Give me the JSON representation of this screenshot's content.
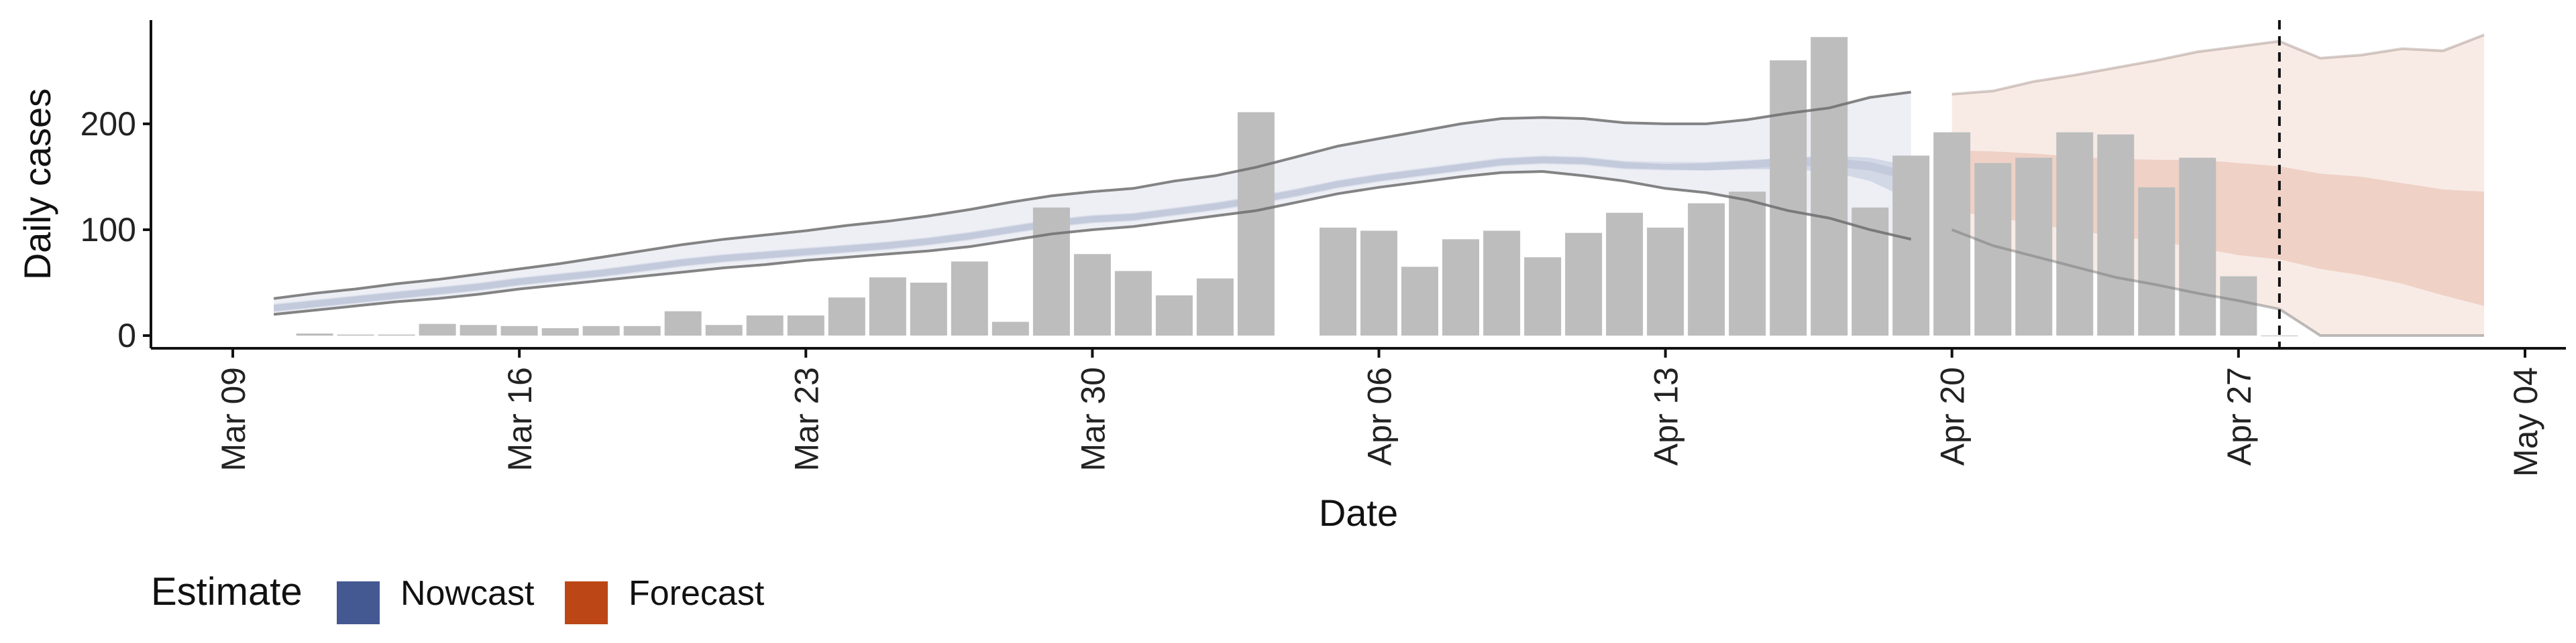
{
  "chart_data": {
    "type": "bar",
    "title": "",
    "xlabel": "Date",
    "ylabel": "Daily cases",
    "x_ticks": [
      "Mar 09",
      "Mar 16",
      "Mar 23",
      "Mar 30",
      "Apr 06",
      "Apr 13",
      "Apr 20",
      "Apr 27",
      "May 04"
    ],
    "y_ticks": [
      "0",
      "100",
      "200"
    ],
    "ylim": [
      -12,
      298
    ],
    "xlim": [
      "2020-03-07",
      "2020-05-05"
    ],
    "grid": false,
    "legend": {
      "title": "Estimate",
      "placement": "bottom-left",
      "entries": [
        {
          "label": "Nowcast",
          "color": "#3A4F8C"
        },
        {
          "label": "Forecast",
          "color": "#B83C0A"
        }
      ]
    },
    "dashed_vline_date": "2020-04-28",
    "reported_cases": {
      "name": "Reported cases",
      "color": "#BDBDBD",
      "dates": [
        "2020-03-11",
        "2020-03-12",
        "2020-03-13",
        "2020-03-14",
        "2020-03-15",
        "2020-03-16",
        "2020-03-17",
        "2020-03-18",
        "2020-03-19",
        "2020-03-20",
        "2020-03-21",
        "2020-03-22",
        "2020-03-23",
        "2020-03-24",
        "2020-03-25",
        "2020-03-26",
        "2020-03-27",
        "2020-03-28",
        "2020-03-29",
        "2020-03-30",
        "2020-03-31",
        "2020-04-01",
        "2020-04-02",
        "2020-04-03",
        "2020-04-05",
        "2020-04-06",
        "2020-04-07",
        "2020-04-08",
        "2020-04-09",
        "2020-04-10",
        "2020-04-11",
        "2020-04-12",
        "2020-04-13",
        "2020-04-14",
        "2020-04-15",
        "2020-04-16",
        "2020-04-17",
        "2020-04-18",
        "2020-04-19",
        "2020-04-20",
        "2020-04-21",
        "2020-04-22",
        "2020-04-23",
        "2020-04-24",
        "2020-04-25",
        "2020-04-26",
        "2020-04-27",
        "2020-04-28"
      ],
      "values": [
        2,
        1,
        1,
        11,
        10,
        9,
        7,
        9,
        9,
        23,
        10,
        19,
        19,
        36,
        55,
        50,
        70,
        13,
        121,
        77,
        61,
        38,
        54,
        211,
        102,
        99,
        65,
        91,
        99,
        74,
        97,
        116,
        102,
        125,
        136,
        260,
        282,
        121,
        170,
        192,
        163,
        168,
        192,
        190,
        140,
        168,
        56,
        0
      ]
    },
    "nowcast": {
      "name": "Nowcast",
      "color": "#3A4F8C",
      "dates": [
        "2020-03-10",
        "2020-03-11",
        "2020-03-12",
        "2020-03-13",
        "2020-03-14",
        "2020-03-15",
        "2020-03-16",
        "2020-03-17",
        "2020-03-18",
        "2020-03-19",
        "2020-03-20",
        "2020-03-21",
        "2020-03-22",
        "2020-03-23",
        "2020-03-24",
        "2020-03-25",
        "2020-03-26",
        "2020-03-27",
        "2020-03-28",
        "2020-03-29",
        "2020-03-30",
        "2020-03-31",
        "2020-04-01",
        "2020-04-02",
        "2020-04-03",
        "2020-04-04",
        "2020-04-05",
        "2020-04-06",
        "2020-04-07",
        "2020-04-08",
        "2020-04-09",
        "2020-04-10",
        "2020-04-11",
        "2020-04-12",
        "2020-04-13",
        "2020-04-14",
        "2020-04-15",
        "2020-04-16",
        "2020-04-17",
        "2020-04-18",
        "2020-04-19"
      ],
      "upper90": [
        35,
        40,
        44,
        49,
        53,
        58,
        63,
        68,
        74,
        80,
        86,
        91,
        95,
        99,
        104,
        108,
        113,
        119,
        126,
        132,
        136,
        139,
        146,
        151,
        159,
        169,
        179,
        186,
        193,
        200,
        205,
        206,
        205,
        201,
        200,
        200,
        204,
        210,
        215,
        225,
        230
      ],
      "upper50": [
        29,
        33,
        37,
        41,
        45,
        49,
        54,
        58,
        62,
        67,
        72,
        76,
        79,
        82,
        85,
        88,
        92,
        97,
        103,
        109,
        113,
        115,
        120,
        125,
        131,
        138,
        146,
        152,
        157,
        162,
        167,
        169,
        168,
        164,
        162,
        163,
        165,
        168,
        170,
        168,
        160
      ],
      "median": [
        26,
        30,
        34,
        38,
        42,
        46,
        51,
        55,
        59,
        64,
        69,
        73,
        76,
        79,
        82,
        85,
        89,
        94,
        100,
        106,
        110,
        112,
        117,
        122,
        128,
        135,
        143,
        149,
        154,
        159,
        164,
        166,
        165,
        161,
        160,
        160,
        162,
        164,
        164,
        160,
        150
      ],
      "lower50": [
        23,
        27,
        31,
        35,
        39,
        43,
        48,
        52,
        56,
        61,
        66,
        70,
        73,
        76,
        79,
        82,
        86,
        91,
        97,
        103,
        107,
        109,
        114,
        119,
        125,
        132,
        140,
        146,
        151,
        156,
        161,
        163,
        162,
        158,
        157,
        156,
        157,
        157,
        155,
        146,
        128
      ],
      "lower90": [
        20,
        24,
        28,
        32,
        35,
        39,
        44,
        48,
        52,
        56,
        60,
        64,
        67,
        71,
        74,
        77,
        80,
        84,
        90,
        96,
        100,
        103,
        108,
        113,
        118,
        126,
        134,
        140,
        145,
        150,
        154,
        155,
        151,
        146,
        139,
        135,
        128,
        118,
        111,
        100,
        91
      ]
    },
    "forecast": {
      "name": "Forecast",
      "color": "#B83C0A",
      "dates": [
        "2020-04-20",
        "2020-04-21",
        "2020-04-22",
        "2020-04-23",
        "2020-04-24",
        "2020-04-25",
        "2020-04-26",
        "2020-04-27",
        "2020-04-28",
        "2020-04-29",
        "2020-04-30",
        "2020-05-01",
        "2020-05-02",
        "2020-05-03"
      ],
      "upper90": [
        228,
        231,
        240,
        246,
        253,
        260,
        268,
        273,
        278,
        262,
        265,
        271,
        269,
        284
      ],
      "upper50": [
        175,
        174,
        172,
        169,
        167,
        166,
        166,
        163,
        160,
        153,
        150,
        144,
        138,
        136
      ],
      "median": [
        150,
        148,
        145,
        142,
        139,
        136,
        133,
        130,
        125,
        118,
        115,
        110,
        104,
        100
      ],
      "lower50": [
        118,
        112,
        106,
        99,
        94,
        89,
        83,
        76,
        72,
        63,
        57,
        49,
        38,
        28
      ],
      "lower90": [
        100,
        85,
        75,
        65,
        55,
        48,
        40,
        33,
        25,
        0,
        0,
        0,
        0,
        0
      ]
    }
  }
}
